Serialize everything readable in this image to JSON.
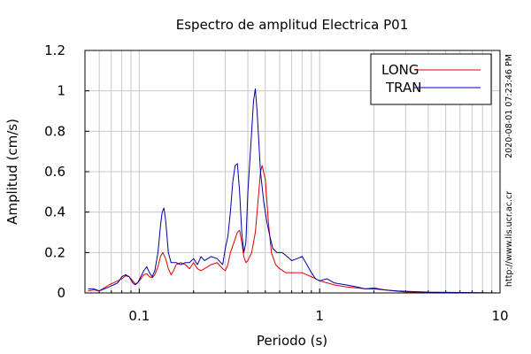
{
  "chart_data": {
    "type": "line",
    "title": "Espectro de amplitud Electrica P01",
    "xlabel": "Periodo (s)",
    "ylabel": "Amplitud (cm/s)",
    "x_scale": "log",
    "xlim": [
      0.05,
      10
    ],
    "ylim": [
      0,
      1.2
    ],
    "x_ticks": [
      {
        "value": 0.1,
        "label": "0.1"
      },
      {
        "value": 1,
        "label": "1"
      },
      {
        "value": 10,
        "label": "10"
      }
    ],
    "y_ticks": [
      {
        "value": 0,
        "label": "0"
      },
      {
        "value": 0.2,
        "label": "0.2"
      },
      {
        "value": 0.4,
        "label": "0.4"
      },
      {
        "value": 0.6,
        "label": "0.6"
      },
      {
        "value": 0.8,
        "label": "0.8"
      },
      {
        "value": 1,
        "label": "1"
      },
      {
        "value": 1.2,
        "label": "1.2"
      }
    ],
    "grid": true,
    "legend_position": "top-right",
    "series": [
      {
        "name": "LONG",
        "color": "#dd0000",
        "points": [
          [
            0.052,
            0.01
          ],
          [
            0.056,
            0.015
          ],
          [
            0.06,
            0.01
          ],
          [
            0.064,
            0.025
          ],
          [
            0.068,
            0.04
          ],
          [
            0.072,
            0.05
          ],
          [
            0.076,
            0.06
          ],
          [
            0.08,
            0.07
          ],
          [
            0.084,
            0.085
          ],
          [
            0.088,
            0.08
          ],
          [
            0.092,
            0.06
          ],
          [
            0.095,
            0.045
          ],
          [
            0.098,
            0.05
          ],
          [
            0.102,
            0.07
          ],
          [
            0.106,
            0.09
          ],
          [
            0.11,
            0.095
          ],
          [
            0.114,
            0.08
          ],
          [
            0.118,
            0.075
          ],
          [
            0.122,
            0.09
          ],
          [
            0.127,
            0.13
          ],
          [
            0.131,
            0.18
          ],
          [
            0.135,
            0.2
          ],
          [
            0.14,
            0.17
          ],
          [
            0.145,
            0.12
          ],
          [
            0.15,
            0.09
          ],
          [
            0.155,
            0.11
          ],
          [
            0.16,
            0.14
          ],
          [
            0.17,
            0.15
          ],
          [
            0.18,
            0.14
          ],
          [
            0.19,
            0.12
          ],
          [
            0.2,
            0.15
          ],
          [
            0.21,
            0.12
          ],
          [
            0.22,
            0.11
          ],
          [
            0.23,
            0.12
          ],
          [
            0.25,
            0.14
          ],
          [
            0.27,
            0.15
          ],
          [
            0.29,
            0.12
          ],
          [
            0.3,
            0.11
          ],
          [
            0.31,
            0.14
          ],
          [
            0.32,
            0.2
          ],
          [
            0.335,
            0.25
          ],
          [
            0.35,
            0.3
          ],
          [
            0.36,
            0.31
          ],
          [
            0.37,
            0.25
          ],
          [
            0.38,
            0.18
          ],
          [
            0.39,
            0.15
          ],
          [
            0.4,
            0.16
          ],
          [
            0.42,
            0.2
          ],
          [
            0.44,
            0.3
          ],
          [
            0.46,
            0.5
          ],
          [
            0.47,
            0.6
          ],
          [
            0.48,
            0.63
          ],
          [
            0.5,
            0.56
          ],
          [
            0.52,
            0.35
          ],
          [
            0.54,
            0.2
          ],
          [
            0.57,
            0.14
          ],
          [
            0.6,
            0.12
          ],
          [
            0.65,
            0.1
          ],
          [
            0.7,
            0.1
          ],
          [
            0.8,
            0.1
          ],
          [
            0.9,
            0.08
          ],
          [
            1.0,
            0.06
          ],
          [
            1.1,
            0.05
          ],
          [
            1.2,
            0.04
          ],
          [
            1.4,
            0.03
          ],
          [
            1.6,
            0.025
          ],
          [
            1.8,
            0.02
          ],
          [
            2.0,
            0.025
          ],
          [
            2.3,
            0.015
          ],
          [
            2.7,
            0.008
          ],
          [
            3.0,
            0.005
          ],
          [
            4.0,
            0.003
          ],
          [
            6.0,
            0.001
          ],
          [
            10.0,
            0.0
          ]
        ]
      },
      {
        "name": "TRAN",
        "color": "#0000aa",
        "points": [
          [
            0.052,
            0.02
          ],
          [
            0.056,
            0.02
          ],
          [
            0.06,
            0.01
          ],
          [
            0.064,
            0.02
          ],
          [
            0.068,
            0.03
          ],
          [
            0.072,
            0.04
          ],
          [
            0.076,
            0.05
          ],
          [
            0.08,
            0.08
          ],
          [
            0.084,
            0.09
          ],
          [
            0.088,
            0.08
          ],
          [
            0.092,
            0.05
          ],
          [
            0.095,
            0.04
          ],
          [
            0.098,
            0.05
          ],
          [
            0.102,
            0.08
          ],
          [
            0.106,
            0.11
          ],
          [
            0.11,
            0.13
          ],
          [
            0.114,
            0.1
          ],
          [
            0.118,
            0.08
          ],
          [
            0.122,
            0.11
          ],
          [
            0.127,
            0.2
          ],
          [
            0.131,
            0.33
          ],
          [
            0.134,
            0.4
          ],
          [
            0.137,
            0.42
          ],
          [
            0.14,
            0.36
          ],
          [
            0.145,
            0.2
          ],
          [
            0.15,
            0.15
          ],
          [
            0.155,
            0.15
          ],
          [
            0.16,
            0.15
          ],
          [
            0.17,
            0.14
          ],
          [
            0.18,
            0.15
          ],
          [
            0.19,
            0.15
          ],
          [
            0.2,
            0.17
          ],
          [
            0.21,
            0.14
          ],
          [
            0.22,
            0.18
          ],
          [
            0.23,
            0.16
          ],
          [
            0.25,
            0.18
          ],
          [
            0.27,
            0.17
          ],
          [
            0.29,
            0.14
          ],
          [
            0.3,
            0.22
          ],
          [
            0.31,
            0.28
          ],
          [
            0.32,
            0.4
          ],
          [
            0.33,
            0.55
          ],
          [
            0.34,
            0.63
          ],
          [
            0.35,
            0.64
          ],
          [
            0.36,
            0.5
          ],
          [
            0.37,
            0.3
          ],
          [
            0.38,
            0.2
          ],
          [
            0.39,
            0.25
          ],
          [
            0.4,
            0.5
          ],
          [
            0.42,
            0.8
          ],
          [
            0.43,
            0.95
          ],
          [
            0.44,
            1.01
          ],
          [
            0.45,
            0.9
          ],
          [
            0.47,
            0.6
          ],
          [
            0.49,
            0.45
          ],
          [
            0.51,
            0.35
          ],
          [
            0.53,
            0.28
          ],
          [
            0.55,
            0.22
          ],
          [
            0.58,
            0.2
          ],
          [
            0.62,
            0.2
          ],
          [
            0.66,
            0.18
          ],
          [
            0.7,
            0.16
          ],
          [
            0.75,
            0.17
          ],
          [
            0.8,
            0.18
          ],
          [
            0.85,
            0.14
          ],
          [
            0.9,
            0.1
          ],
          [
            0.95,
            0.07
          ],
          [
            1.0,
            0.06
          ],
          [
            1.1,
            0.07
          ],
          [
            1.2,
            0.05
          ],
          [
            1.4,
            0.04
          ],
          [
            1.6,
            0.03
          ],
          [
            1.8,
            0.02
          ],
          [
            2.0,
            0.02
          ],
          [
            2.3,
            0.015
          ],
          [
            2.7,
            0.01
          ],
          [
            3.0,
            0.008
          ],
          [
            4.0,
            0.004
          ],
          [
            6.0,
            0.002
          ],
          [
            10.0,
            0.0
          ]
        ]
      }
    ]
  },
  "side_annotations": {
    "timestamp": "2020-08-01 07:23:46 PM",
    "url": "http://www.lis.ucr.ac.cr"
  }
}
